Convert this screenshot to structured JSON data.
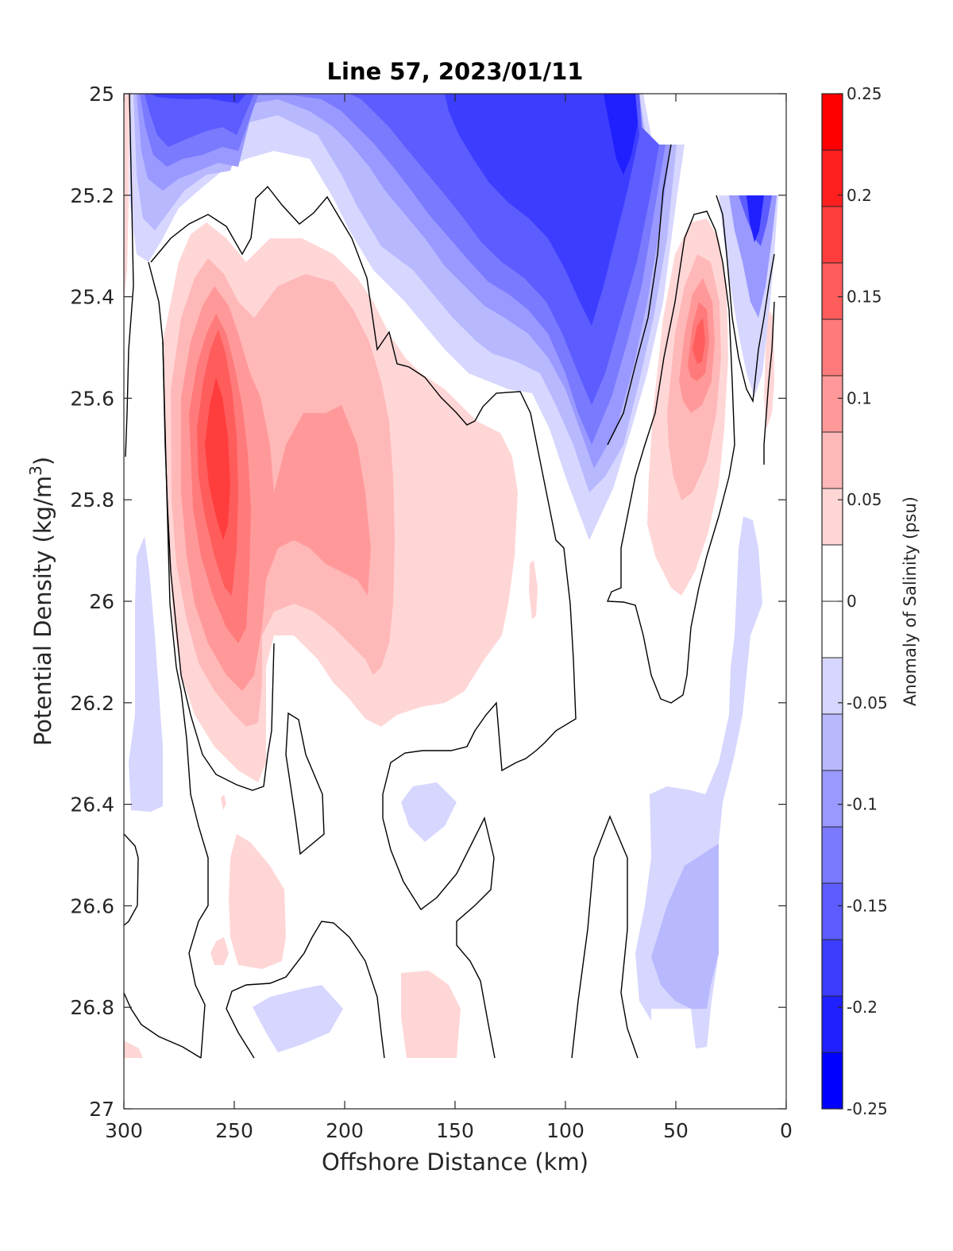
{
  "chart_data": {
    "type": "contour",
    "title": "Line 57, 2023/01/11",
    "xlabel": "Offshore Distance (km)",
    "ylabel_main": "Potential Density (kg/m",
    "ylabel_sup": "3",
    "ylabel_close": ")",
    "xlim": [
      300,
      0
    ],
    "ylim": [
      25,
      27
    ],
    "y_reversed": true,
    "x_ticks": [
      {
        "value": 300,
        "label": "300"
      },
      {
        "value": 250,
        "label": "250"
      },
      {
        "value": 200,
        "label": "200"
      },
      {
        "value": 150,
        "label": "150"
      },
      {
        "value": 100,
        "label": "100"
      },
      {
        "value": 50,
        "label": "50"
      },
      {
        "value": 0,
        "label": "0"
      }
    ],
    "y_ticks": [
      {
        "value": 25.0,
        "label": "25"
      },
      {
        "value": 25.2,
        "label": "25.2"
      },
      {
        "value": 25.4,
        "label": "25.4"
      },
      {
        "value": 25.6,
        "label": "25.6"
      },
      {
        "value": 25.8,
        "label": "25.8"
      },
      {
        "value": 26.0,
        "label": "26"
      },
      {
        "value": 26.2,
        "label": "26.2"
      },
      {
        "value": 26.4,
        "label": "26.4"
      },
      {
        "value": 26.6,
        "label": "26.6"
      },
      {
        "value": 26.8,
        "label": "26.8"
      },
      {
        "value": 27.0,
        "label": "27"
      }
    ],
    "colorbar": {
      "label": "Anomaly of Salinity (psu)",
      "range": [
        -0.25,
        0.25
      ],
      "level_step": 0.025,
      "ticks": [
        {
          "value": 0.25,
          "label": "0.25"
        },
        {
          "value": 0.2,
          "label": "0.2"
        },
        {
          "value": 0.15,
          "label": "0.15"
        },
        {
          "value": 0.1,
          "label": "0.1"
        },
        {
          "value": 0.05,
          "label": "0.05"
        },
        {
          "value": 0,
          "label": "0"
        },
        {
          "value": -0.05,
          "label": "-0.05"
        },
        {
          "value": -0.1,
          "label": "-0.1"
        },
        {
          "value": -0.15,
          "label": "-0.15"
        },
        {
          "value": -0.2,
          "label": "-0.2"
        },
        {
          "value": -0.25,
          "label": "-0.25"
        }
      ],
      "colors": [
        "#0000ff",
        "#1f1fff",
        "#3d3dff",
        "#5c5cff",
        "#7a7aff",
        "#9999ff",
        "#b8b8ff",
        "#d6d6ff",
        "#ffffff",
        "#ffffff",
        "#ffd6d6",
        "#ffb8b8",
        "#ff9999",
        "#ff7a7a",
        "#ff5c5c",
        "#ff3d3d",
        "#ff1f1f",
        "#ff0000"
      ]
    },
    "features": [
      {
        "name": "positive core",
        "x": 257,
        "y": 25.7,
        "peak_anomaly": 0.15
      },
      {
        "name": "positive lobe",
        "x": 200,
        "y": 25.8,
        "peak_anomaly": 0.1
      },
      {
        "name": "positive core near shore",
        "x": 38,
        "y": 25.5,
        "peak_anomaly": 0.15
      },
      {
        "name": "negative surface band",
        "x": 85,
        "y": 25.05,
        "peak_anomaly": -0.2
      },
      {
        "name": "negative surface band offshore",
        "x": 265,
        "y": 25.0,
        "peak_anomaly": -0.175
      },
      {
        "name": "negative coastal patch",
        "x": 15,
        "y": 25.3,
        "peak_anomaly": -0.175
      },
      {
        "name": "negative deep patch",
        "x": 45,
        "y": 26.6,
        "peak_anomaly": -0.075
      }
    ]
  }
}
